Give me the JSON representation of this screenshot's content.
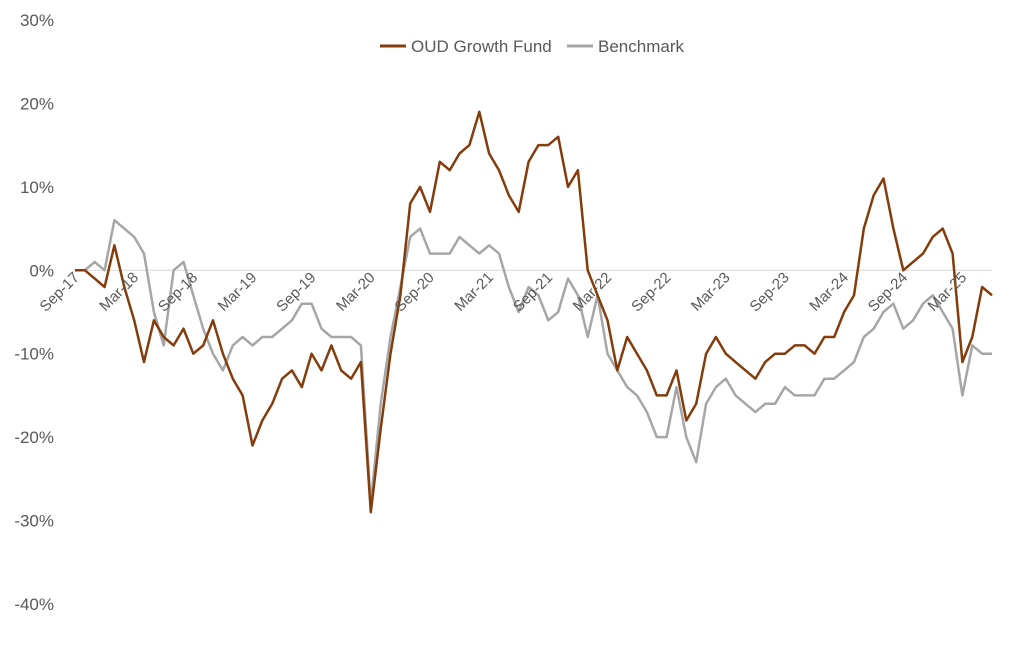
{
  "chart_data": {
    "type": "line",
    "title": "",
    "xlabel": "",
    "ylabel": "",
    "x_range": [
      "2017-09",
      "2025-06"
    ],
    "ylim": [
      -40,
      30
    ],
    "yticks": [
      30,
      20,
      10,
      0,
      -10,
      -20,
      -30,
      -40
    ],
    "ytick_labels": [
      "30%",
      "20%",
      "10%",
      "0%",
      "-10%",
      "-20%",
      "-30%",
      "-40%"
    ],
    "xticks": [
      "2017-09",
      "2018-03",
      "2018-09",
      "2019-03",
      "2019-09",
      "2020-03",
      "2020-09",
      "2021-03",
      "2021-09",
      "2022-03",
      "2022-09",
      "2023-03",
      "2023-09",
      "2024-03",
      "2024-09",
      "2025-03"
    ],
    "xtick_labels": [
      "Sep-17",
      "Mar-18",
      "Sep-18",
      "Mar-19",
      "Sep-19",
      "Mar-20",
      "Sep-20",
      "Mar-21",
      "Sep-21",
      "Mar-22",
      "Sep-22",
      "Mar-23",
      "Sep-23",
      "Mar-24",
      "Sep-24",
      "Mar-25"
    ],
    "grid": false,
    "legend": "top-center",
    "series": [
      {
        "name": "OUD Growth Fund",
        "color": "#843C0C",
        "x": [
          "2017-09",
          "2017-10",
          "2017-11",
          "2017-12",
          "2018-01",
          "2018-02",
          "2018-03",
          "2018-04",
          "2018-05",
          "2018-06",
          "2018-07",
          "2018-08",
          "2018-09",
          "2018-10",
          "2018-11",
          "2018-12",
          "2019-01",
          "2019-02",
          "2019-03",
          "2019-04",
          "2019-05",
          "2019-06",
          "2019-07",
          "2019-08",
          "2019-09",
          "2019-10",
          "2019-11",
          "2019-12",
          "2020-01",
          "2020-02",
          "2020-03",
          "2020-04",
          "2020-05",
          "2020-06",
          "2020-07",
          "2020-08",
          "2020-09",
          "2020-10",
          "2020-11",
          "2020-12",
          "2021-01",
          "2021-02",
          "2021-03",
          "2021-04",
          "2021-05",
          "2021-06",
          "2021-07",
          "2021-08",
          "2021-09",
          "2021-10",
          "2021-11",
          "2021-12",
          "2022-01",
          "2022-02",
          "2022-03",
          "2022-04",
          "2022-05",
          "2022-06",
          "2022-07",
          "2022-08",
          "2022-09",
          "2022-10",
          "2022-11",
          "2022-12",
          "2023-01",
          "2023-02",
          "2023-03",
          "2023-04",
          "2023-05",
          "2023-06",
          "2023-07",
          "2023-08",
          "2023-09",
          "2023-10",
          "2023-11",
          "2023-12",
          "2024-01",
          "2024-02",
          "2024-03",
          "2024-04",
          "2024-05",
          "2024-06",
          "2024-07",
          "2024-08",
          "2024-09",
          "2024-10",
          "2024-11",
          "2024-12",
          "2025-01",
          "2025-02",
          "2025-03",
          "2025-04",
          "2025-05",
          "2025-06"
        ],
        "values": [
          0,
          0,
          -1,
          -2,
          3,
          -2,
          -6,
          -11,
          -6,
          -8,
          -9,
          -7,
          -10,
          -9,
          -6,
          -10,
          -13,
          -15,
          -21,
          -18,
          -16,
          -13,
          -12,
          -14,
          -10,
          -12,
          -9,
          -12,
          -13,
          -11,
          -29,
          -19,
          -10,
          -3,
          8,
          10,
          7,
          13,
          12,
          14,
          15,
          19,
          14,
          12,
          9,
          7,
          13,
          15,
          15,
          16,
          10,
          12,
          0,
          -3,
          -6,
          -12,
          -8,
          -10,
          -12,
          -15,
          -15,
          -12,
          -18,
          -16,
          -10,
          -8,
          -10,
          -11,
          -12,
          -13,
          -11,
          -10,
          -10,
          -9,
          -9,
          -10,
          -8,
          -8,
          -5,
          -3,
          5,
          9,
          11,
          5,
          0,
          1,
          2,
          4,
          5,
          2,
          -11,
          -8,
          -2,
          -3
        ]
      },
      {
        "name": "Benchmark",
        "color": "#A6A6A6",
        "x": [
          "2017-09",
          "2017-10",
          "2017-11",
          "2017-12",
          "2018-01",
          "2018-02",
          "2018-03",
          "2018-04",
          "2018-05",
          "2018-06",
          "2018-07",
          "2018-08",
          "2018-09",
          "2018-10",
          "2018-11",
          "2018-12",
          "2019-01",
          "2019-02",
          "2019-03",
          "2019-04",
          "2019-05",
          "2019-06",
          "2019-07",
          "2019-08",
          "2019-09",
          "2019-10",
          "2019-11",
          "2019-12",
          "2020-01",
          "2020-02",
          "2020-03",
          "2020-04",
          "2020-05",
          "2020-06",
          "2020-07",
          "2020-08",
          "2020-09",
          "2020-10",
          "2020-11",
          "2020-12",
          "2021-01",
          "2021-02",
          "2021-03",
          "2021-04",
          "2021-05",
          "2021-06",
          "2021-07",
          "2021-08",
          "2021-09",
          "2021-10",
          "2021-11",
          "2021-12",
          "2022-01",
          "2022-02",
          "2022-03",
          "2022-04",
          "2022-05",
          "2022-06",
          "2022-07",
          "2022-08",
          "2022-09",
          "2022-10",
          "2022-11",
          "2022-12",
          "2023-01",
          "2023-02",
          "2023-03",
          "2023-04",
          "2023-05",
          "2023-06",
          "2023-07",
          "2023-08",
          "2023-09",
          "2023-10",
          "2023-11",
          "2023-12",
          "2024-01",
          "2024-02",
          "2024-03",
          "2024-04",
          "2024-05",
          "2024-06",
          "2024-07",
          "2024-08",
          "2024-09",
          "2024-10",
          "2024-11",
          "2024-12",
          "2025-01",
          "2025-02",
          "2025-03",
          "2025-04",
          "2025-05",
          "2025-06"
        ],
        "values": [
          0,
          0,
          1,
          0,
          6,
          5,
          4,
          2,
          -5,
          -9,
          0,
          1,
          -3,
          -7,
          -10,
          -12,
          -9,
          -8,
          -9,
          -8,
          -8,
          -7,
          -6,
          -4,
          -4,
          -7,
          -8,
          -8,
          -8,
          -9,
          -28,
          -16,
          -8,
          -2,
          4,
          5,
          2,
          2,
          2,
          4,
          3,
          2,
          3,
          2,
          -2,
          -5,
          -2,
          -3,
          -6,
          -5,
          -1,
          -3,
          -8,
          -3,
          -10,
          -12,
          -14,
          -15,
          -17,
          -20,
          -20,
          -14,
          -20,
          -23,
          -16,
          -14,
          -13,
          -15,
          -16,
          -17,
          -16,
          -16,
          -14,
          -15,
          -15,
          -15,
          -13,
          -13,
          -12,
          -11,
          -8,
          -7,
          -5,
          -4,
          -7,
          -6,
          -4,
          -3,
          -5,
          -7,
          -15,
          -9,
          -10,
          -10
        ]
      }
    ]
  }
}
